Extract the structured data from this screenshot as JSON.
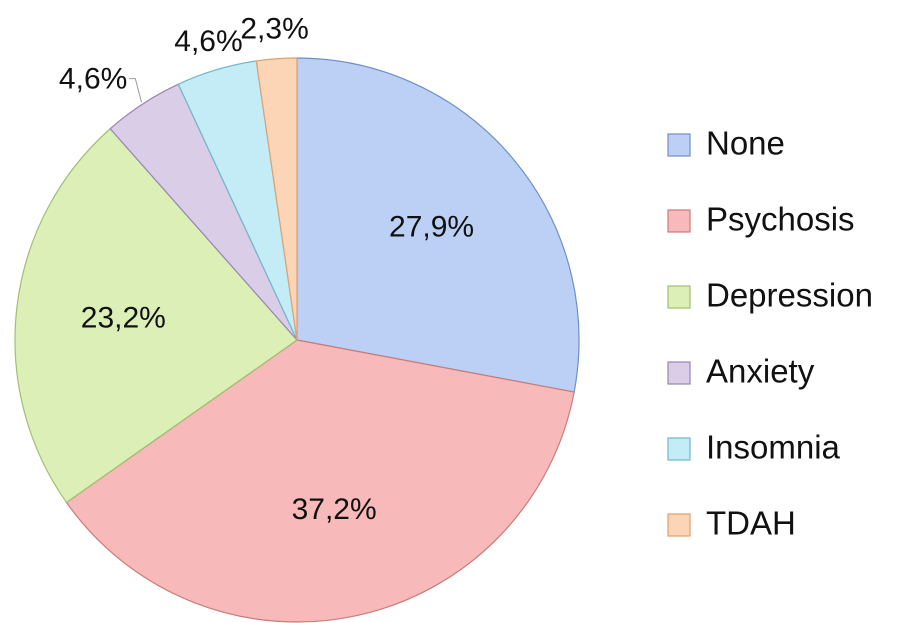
{
  "chart_data": {
    "type": "pie",
    "categories": [
      "None",
      "Psychosis",
      "Depression",
      "Anxiety",
      "Insomnia",
      "TDAH"
    ],
    "values": [
      27.9,
      37.2,
      23.2,
      4.6,
      4.6,
      2.3
    ],
    "value_labels": [
      "27,9%",
      "37,2%",
      "23,2%",
      "4,6%",
      "4,6%",
      "2,3%"
    ],
    "colors": [
      "#bcd0f5",
      "#f7b9b9",
      "#dcefb6",
      "#d9cde8",
      "#c3ecf7",
      "#fbd5b6"
    ],
    "legend": "right"
  }
}
